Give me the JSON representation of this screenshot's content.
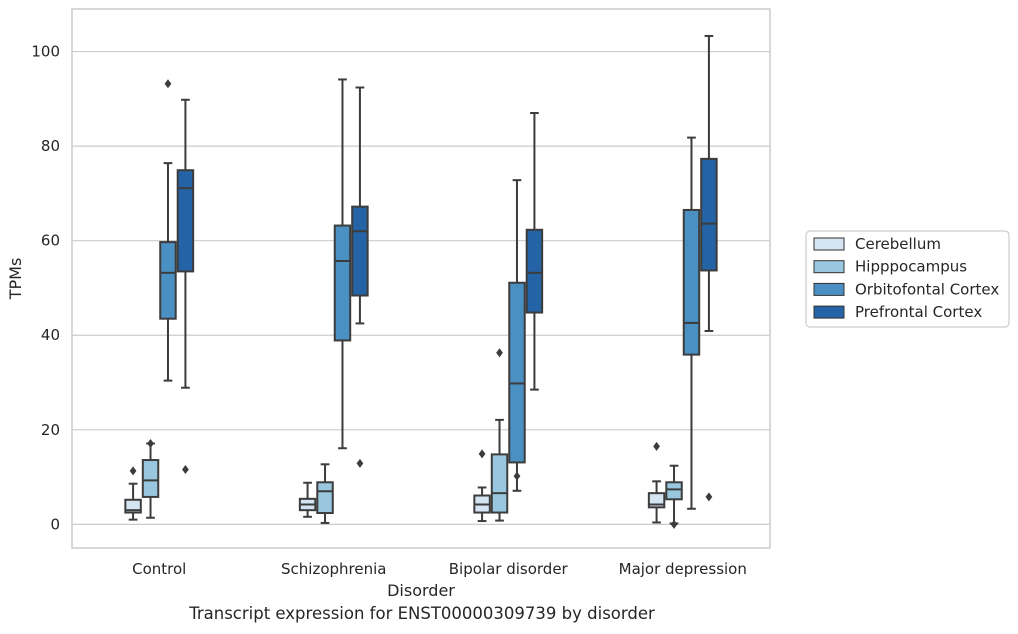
{
  "caption": "Transcript expression for ENST00000309739 by disorder",
  "chart_data": {
    "type": "box",
    "xlabel": "Disorder",
    "ylabel": "TPMs",
    "ylim": [
      -5,
      109
    ],
    "yticks": [
      0,
      20,
      40,
      60,
      80,
      100
    ],
    "grid": true,
    "legend_position": "right",
    "categories": [
      "Control",
      "Schizophrenia",
      "Bipolar disorder",
      "Major depression"
    ],
    "series": [
      {
        "name": "Cerebellum",
        "color": "#d4e4f2",
        "boxes": [
          {
            "whisker_low": 1,
            "q1": 2.5,
            "median": 3,
            "q3": 5.2,
            "whisker_high": 8.6,
            "outliers": [
              11.3
            ]
          },
          {
            "whisker_low": 1.6,
            "q1": 3,
            "median": 4.2,
            "q3": 5.4,
            "whisker_high": 8.8,
            "outliers": []
          },
          {
            "whisker_low": 0.7,
            "q1": 2.5,
            "median": 4.2,
            "q3": 6.1,
            "whisker_high": 7.8,
            "outliers": [
              14.9
            ]
          },
          {
            "whisker_low": 0.4,
            "q1": 3.6,
            "median": 4.2,
            "q3": 6.6,
            "whisker_high": 9.1,
            "outliers": [
              16.5
            ]
          }
        ]
      },
      {
        "name": "Hipppocampus",
        "color": "#9ac7e0",
        "boxes": [
          {
            "whisker_low": 1.4,
            "q1": 5.8,
            "median": 9.3,
            "q3": 13.6,
            "whisker_high": 17.1,
            "outliers": [
              17.1
            ]
          },
          {
            "whisker_low": 0.3,
            "q1": 2.4,
            "median": 7,
            "q3": 8.9,
            "whisker_high": 12.7,
            "outliers": []
          },
          {
            "whisker_low": 0.8,
            "q1": 2.5,
            "median": 6.6,
            "q3": 14.8,
            "whisker_high": 22.1,
            "outliers": [
              36.3
            ]
          },
          {
            "whisker_low": 0.2,
            "q1": 5.3,
            "median": 7.4,
            "q3": 8.9,
            "whisker_high": 12.4,
            "outliers": [
              0
            ]
          }
        ]
      },
      {
        "name": "Orbitofontal Cortex",
        "color": "#4b90c2",
        "boxes": [
          {
            "whisker_low": 30.4,
            "q1": 43.5,
            "median": 53.2,
            "q3": 59.7,
            "whisker_high": 76.4,
            "outliers": [
              93.2
            ]
          },
          {
            "whisker_low": 16.1,
            "q1": 38.9,
            "median": 55.7,
            "q3": 63.2,
            "whisker_high": 94.1,
            "outliers": []
          },
          {
            "whisker_low": 7.1,
            "q1": 13.1,
            "median": 29.8,
            "q3": 51.1,
            "whisker_high": 72.8,
            "outliers": [
              10.2
            ]
          },
          {
            "whisker_low": 3.3,
            "q1": 35.9,
            "median": 42.6,
            "q3": 66.5,
            "whisker_high": 81.8,
            "outliers": []
          }
        ]
      },
      {
        "name": "Prefrontal Cortex",
        "color": "#2363a6",
        "boxes": [
          {
            "whisker_low": 28.9,
            "q1": 53.5,
            "median": 71.1,
            "q3": 74.9,
            "whisker_high": 89.8,
            "outliers": [
              11.6
            ]
          },
          {
            "whisker_low": 42.5,
            "q1": 48.4,
            "median": 62,
            "q3": 67.2,
            "whisker_high": 92.4,
            "outliers": [
              12.9
            ]
          },
          {
            "whisker_low": 28.5,
            "q1": 44.8,
            "median": 53.2,
            "q3": 62.3,
            "whisker_high": 87,
            "outliers": []
          },
          {
            "whisker_low": 40.9,
            "q1": 53.7,
            "median": 63.6,
            "q3": 77.3,
            "whisker_high": 103.3,
            "outliers": [
              5.8
            ]
          }
        ]
      }
    ]
  }
}
